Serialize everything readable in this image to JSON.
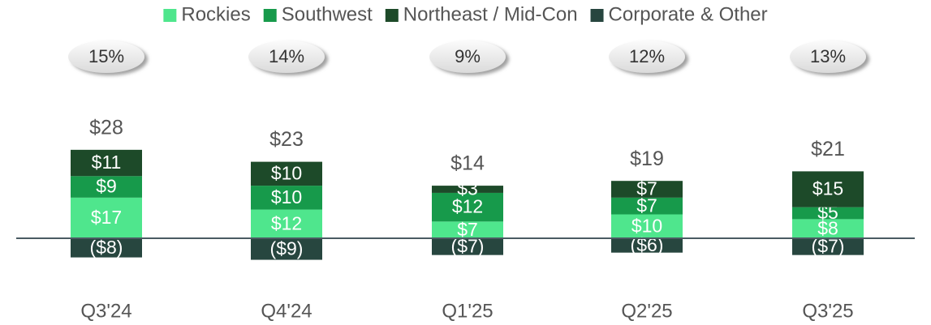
{
  "chart_data": {
    "type": "bar",
    "stacked": true,
    "legend": "top",
    "categories": [
      "Q3'24",
      "Q4'24",
      "Q1'25",
      "Q2'25",
      "Q3'25"
    ],
    "series": [
      {
        "name": "Rockies",
        "color": "#4fe68d",
        "values": [
          17,
          12,
          7,
          10,
          8
        ],
        "value_labels": [
          "$17",
          "$12",
          "$7",
          "$10",
          "$8"
        ]
      },
      {
        "name": "Southwest",
        "color": "#179a4b",
        "values": [
          9,
          10,
          12,
          7,
          5
        ],
        "value_labels": [
          "$9",
          "$10",
          "$12",
          "$7",
          "$5"
        ]
      },
      {
        "name": "Northeast / Mid-Con",
        "color": "#1d4a29",
        "values": [
          11,
          10,
          3,
          7,
          15
        ],
        "value_labels": [
          "$11",
          "$10",
          "$3",
          "$7",
          "$15"
        ]
      },
      {
        "name": "Corporate & Other",
        "color": "#27463f",
        "values": [
          -8,
          -9,
          -7,
          -6,
          -7
        ],
        "value_labels": [
          "($8)",
          "($9)",
          "($7)",
          "($6)",
          "($7)"
        ]
      }
    ],
    "totals": {
      "values": [
        28,
        23,
        14,
        19,
        21
      ],
      "value_labels": [
        "$28",
        "$23",
        "$14",
        "$19",
        "$21"
      ]
    },
    "percentages": {
      "values": [
        15,
        14,
        9,
        12,
        13
      ],
      "value_labels": [
        "15%",
        "14%",
        "9%",
        "12%",
        "13%"
      ]
    }
  }
}
